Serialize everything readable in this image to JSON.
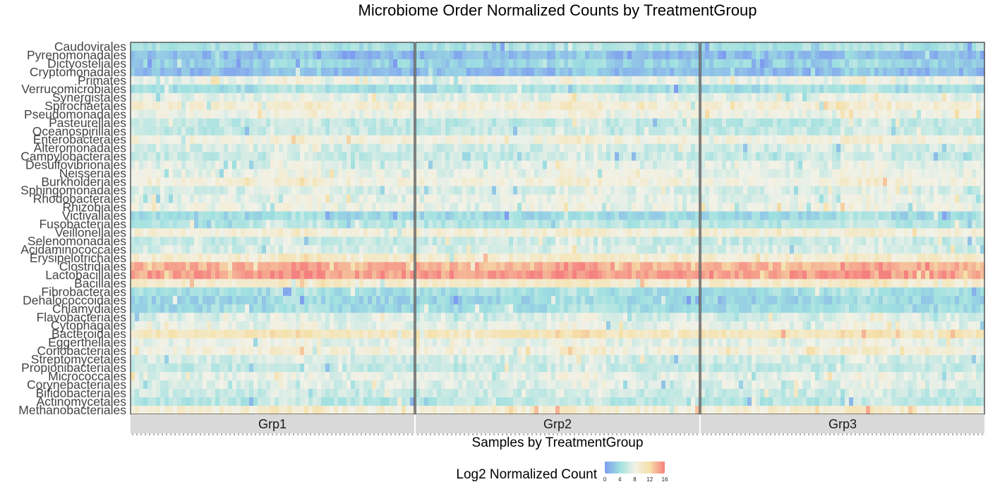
{
  "chart_data": {
    "type": "heatmap",
    "title": "Microbiome Order Normalized Counts by TreatmentGroup",
    "xlabel": "Samples by TreatmentGroup",
    "ylabel": "",
    "rows": [
      "Caudovirales",
      "Pyrenomonadales",
      "Dictyosteliales",
      "Cryptomonadales",
      "Primates",
      "Verrucomicrobiales",
      "Synergistales",
      "Spirochaetales",
      "Pseudomonadales",
      "Pasteurellales",
      "Oceanospirillales",
      "Enterobacterales",
      "Alteromonadales",
      "Campylobacterales",
      "Desulfovibrionales",
      "Neisseriales",
      "Burkholderiales",
      "Sphingomonadales",
      "Rhodobacterales",
      "Rhizobiales",
      "Victivallales",
      "Fusobacteriales",
      "Veillonellales",
      "Selenomonadales",
      "Acidaminococcales",
      "Erysipelotrichales",
      "Clostridiales",
      "Lactobacillales",
      "Bacillales",
      "Fibrobacterales",
      "Dehalococcoidales",
      "Chlamydiales",
      "Flavobacteriales",
      "Cytophagales",
      "Bacteroidales",
      "Eggerthellales",
      "Coriobacteriales",
      "Streptomycetales",
      "Propionibacteriales",
      "Micrococcales",
      "Corynebacteriales",
      "Bifidobacteriales",
      "Actinomycetales",
      "Methanobacteriales"
    ],
    "row_means": [
      4.5,
      1.8,
      3.2,
      1.9,
      7.6,
      4.2,
      7.3,
      9.0,
      7.8,
      5.6,
      5.8,
      8.6,
      6.4,
      5.9,
      7.1,
      7.4,
      8.6,
      6.7,
      7.3,
      7.8,
      3.8,
      5.1,
      8.9,
      6.0,
      6.6,
      9.4,
      13.8,
      14.6,
      9.6,
      4.2,
      3.5,
      3.9,
      6.7,
      7.3,
      10.6,
      7.4,
      8.6,
      6.4,
      5.8,
      7.3,
      6.9,
      6.1,
      5.2,
      9.1
    ],
    "groups": [
      {
        "name": "Grp1",
        "samples": 67
      },
      {
        "name": "Grp2",
        "samples": 67
      },
      {
        "name": "Grp3",
        "samples": 67
      }
    ],
    "legend": {
      "title": "Log2 Normalized Count",
      "ticks": [
        "0",
        "4",
        "8",
        "12",
        "16"
      ],
      "range": [
        0,
        16
      ],
      "colors": [
        "#7e9cf0",
        "#9fe0e0",
        "#f2f2e8",
        "#f5e0a8",
        "#f58080"
      ],
      "placement": "bottom"
    },
    "strip_color": "#d9d9d9",
    "grid": false
  }
}
